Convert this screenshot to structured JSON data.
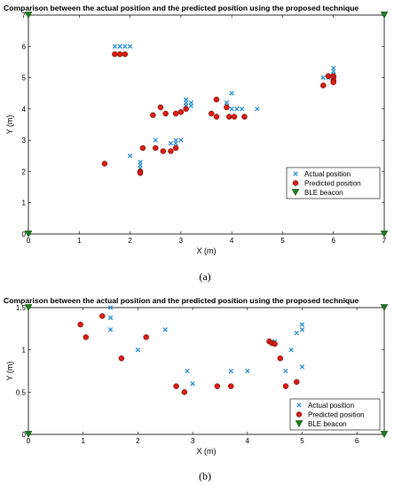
{
  "chart_data": [
    {
      "type": "scatter",
      "title": "Comparison between the actual position and the predicted position using the proposed technique",
      "xlabel": "X (m)",
      "ylabel": "Y (m)",
      "xlim": [
        0,
        7
      ],
      "ylim": [
        0,
        7
      ],
      "xticks": [
        "0",
        "1",
        "2",
        "3",
        "4",
        "5",
        "6",
        "7"
      ],
      "yticks": [
        "0",
        "1",
        "2",
        "3",
        "4",
        "5",
        "6",
        "7"
      ],
      "grid": false,
      "legend_position": "bottom-right",
      "caption": "(a)",
      "series": [
        {
          "name": "Actual position",
          "marker": "x",
          "color": "#2a8fd6",
          "points": [
            [
              1.7,
              6.0
            ],
            [
              1.8,
              6.0
            ],
            [
              1.9,
              6.0
            ],
            [
              2.0,
              6.0
            ],
            [
              2.0,
              2.5
            ],
            [
              2.2,
              2.3
            ],
            [
              2.2,
              2.2
            ],
            [
              2.2,
              2.1
            ],
            [
              2.5,
              3.0
            ],
            [
              2.8,
              2.9
            ],
            [
              2.9,
              3.0
            ],
            [
              2.9,
              2.9
            ],
            [
              3.0,
              3.0
            ],
            [
              3.1,
              4.1
            ],
            [
              3.1,
              4.2
            ],
            [
              3.1,
              4.3
            ],
            [
              3.2,
              4.2
            ],
            [
              3.2,
              4.1
            ],
            [
              3.9,
              4.1
            ],
            [
              3.9,
              4.2
            ],
            [
              4.0,
              4.5
            ],
            [
              4.0,
              4.0
            ],
            [
              4.1,
              4.0
            ],
            [
              4.2,
              4.0
            ],
            [
              4.5,
              4.0
            ],
            [
              5.8,
              5.0
            ],
            [
              5.9,
              5.0
            ],
            [
              6.0,
              5.1
            ],
            [
              6.0,
              5.2
            ],
            [
              6.0,
              5.3
            ],
            [
              6.0,
              5.0
            ],
            [
              6.0,
              4.9
            ]
          ]
        },
        {
          "name": "Predicted position",
          "marker": "circle",
          "color": "#d71d14",
          "points": [
            [
              1.5,
              2.25
            ],
            [
              1.7,
              5.75
            ],
            [
              1.8,
              5.75
            ],
            [
              1.9,
              5.75
            ],
            [
              2.2,
              2.0
            ],
            [
              2.2,
              1.95
            ],
            [
              2.25,
              2.75
            ],
            [
              2.45,
              3.8
            ],
            [
              2.5,
              2.75
            ],
            [
              2.6,
              4.05
            ],
            [
              2.65,
              2.65
            ],
            [
              2.7,
              3.85
            ],
            [
              2.8,
              2.65
            ],
            [
              2.9,
              3.85
            ],
            [
              2.9,
              2.75
            ],
            [
              3.0,
              3.9
            ],
            [
              3.1,
              4.0
            ],
            [
              3.6,
              3.85
            ],
            [
              3.7,
              3.75
            ],
            [
              3.7,
              4.3
            ],
            [
              3.9,
              4.05
            ],
            [
              3.95,
              3.75
            ],
            [
              4.05,
              3.75
            ],
            [
              4.25,
              3.75
            ],
            [
              5.8,
              4.75
            ],
            [
              5.9,
              5.05
            ],
            [
              6.0,
              5.05
            ],
            [
              6.0,
              5.0
            ],
            [
              6.0,
              4.9
            ],
            [
              6.0,
              4.85
            ]
          ]
        },
        {
          "name": "BLE beacon",
          "marker": "triangle-down",
          "color": "#1e7a1e",
          "points": [
            [
              0,
              7
            ],
            [
              7,
              7
            ],
            [
              0,
              0
            ],
            [
              7,
              0
            ]
          ]
        }
      ]
    },
    {
      "type": "scatter",
      "title": "Comparison between the actual position and the predicted position using the proposed technique",
      "xlabel": "X (m)",
      "ylabel": "Y (m)",
      "xlim": [
        0,
        6.5
      ],
      "ylim": [
        0,
        1.5
      ],
      "xticks": [
        "0",
        "1",
        "2",
        "3",
        "4",
        "5",
        "6"
      ],
      "yticks": [
        "0",
        "0.5",
        "1",
        "1.5"
      ],
      "grid": false,
      "legend_position": "bottom-right",
      "caption": "(b)",
      "series": [
        {
          "name": "Actual position",
          "marker": "x",
          "color": "#2a8fd6",
          "points": [
            [
              1.5,
              1.5
            ],
            [
              1.5,
              1.38
            ],
            [
              1.5,
              1.24
            ],
            [
              2.0,
              1.0
            ],
            [
              2.5,
              1.24
            ],
            [
              2.9,
              0.75
            ],
            [
              3.0,
              0.6
            ],
            [
              3.7,
              0.75
            ],
            [
              4.0,
              0.75
            ],
            [
              4.5,
              1.1
            ],
            [
              4.7,
              0.75
            ],
            [
              4.8,
              1.0
            ],
            [
              4.9,
              1.2
            ],
            [
              5.0,
              1.3
            ],
            [
              5.0,
              1.24
            ],
            [
              5.0,
              0.8
            ]
          ]
        },
        {
          "name": "Predicted position",
          "marker": "circle",
          "color": "#d71d14",
          "points": [
            [
              0.95,
              1.3
            ],
            [
              1.05,
              1.15
            ],
            [
              1.35,
              1.4
            ],
            [
              1.7,
              0.9
            ],
            [
              2.15,
              1.15
            ],
            [
              2.7,
              0.57
            ],
            [
              2.85,
              0.5
            ],
            [
              3.45,
              0.57
            ],
            [
              3.7,
              0.57
            ],
            [
              4.4,
              1.1
            ],
            [
              4.45,
              1.08
            ],
            [
              4.5,
              1.07
            ],
            [
              4.6,
              0.9
            ],
            [
              4.7,
              0.57
            ],
            [
              4.9,
              0.62
            ]
          ]
        },
        {
          "name": "BLE beacon",
          "marker": "triangle-down",
          "color": "#1e7a1e",
          "points": [
            [
              0,
              1.5
            ],
            [
              6.5,
              1.5
            ],
            [
              0,
              0
            ],
            [
              6.5,
              0
            ]
          ]
        }
      ]
    }
  ]
}
